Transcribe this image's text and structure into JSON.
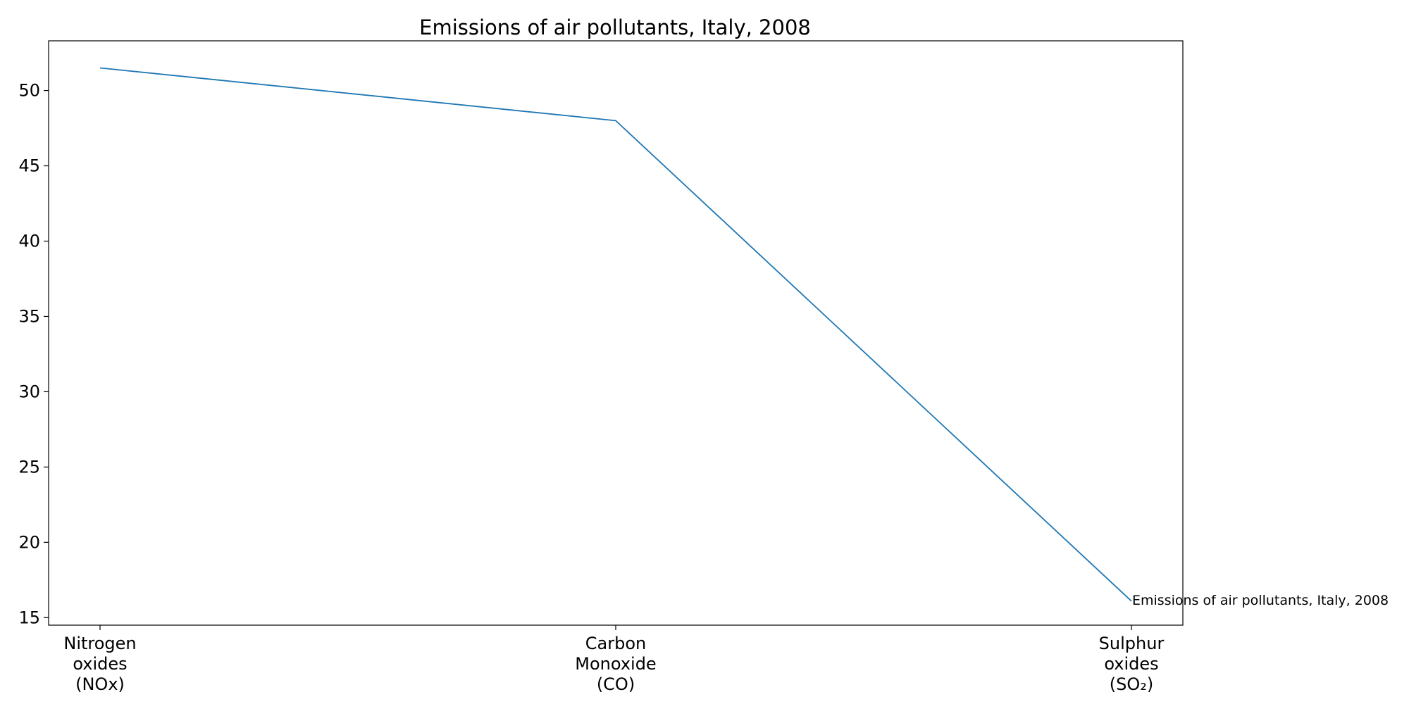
{
  "chart_data": {
    "type": "line",
    "title": "Emissions of air pollutants, Italy, 2008",
    "xlabel": "",
    "ylabel": "",
    "categories": [
      [
        "Nitrogen",
        "oxides",
        "(NOx)"
      ],
      [
        "Carbon",
        "Monoxide",
        "(CO)"
      ],
      [
        "Sulphur",
        "oxides",
        "(SO₂)"
      ]
    ],
    "series": [
      {
        "values": [
          51.5,
          48.0,
          16.1
        ],
        "color": "#1f77b4"
      }
    ],
    "ylim": [
      14.5,
      53.3
    ],
    "yticks": [
      15,
      20,
      25,
      30,
      35,
      40,
      45,
      50
    ],
    "grid": false,
    "legend": "none",
    "annotations": [
      {
        "text": "Emissions of air pollutants, Italy, 2008",
        "at_category": 2,
        "y": 16.1
      }
    ]
  }
}
